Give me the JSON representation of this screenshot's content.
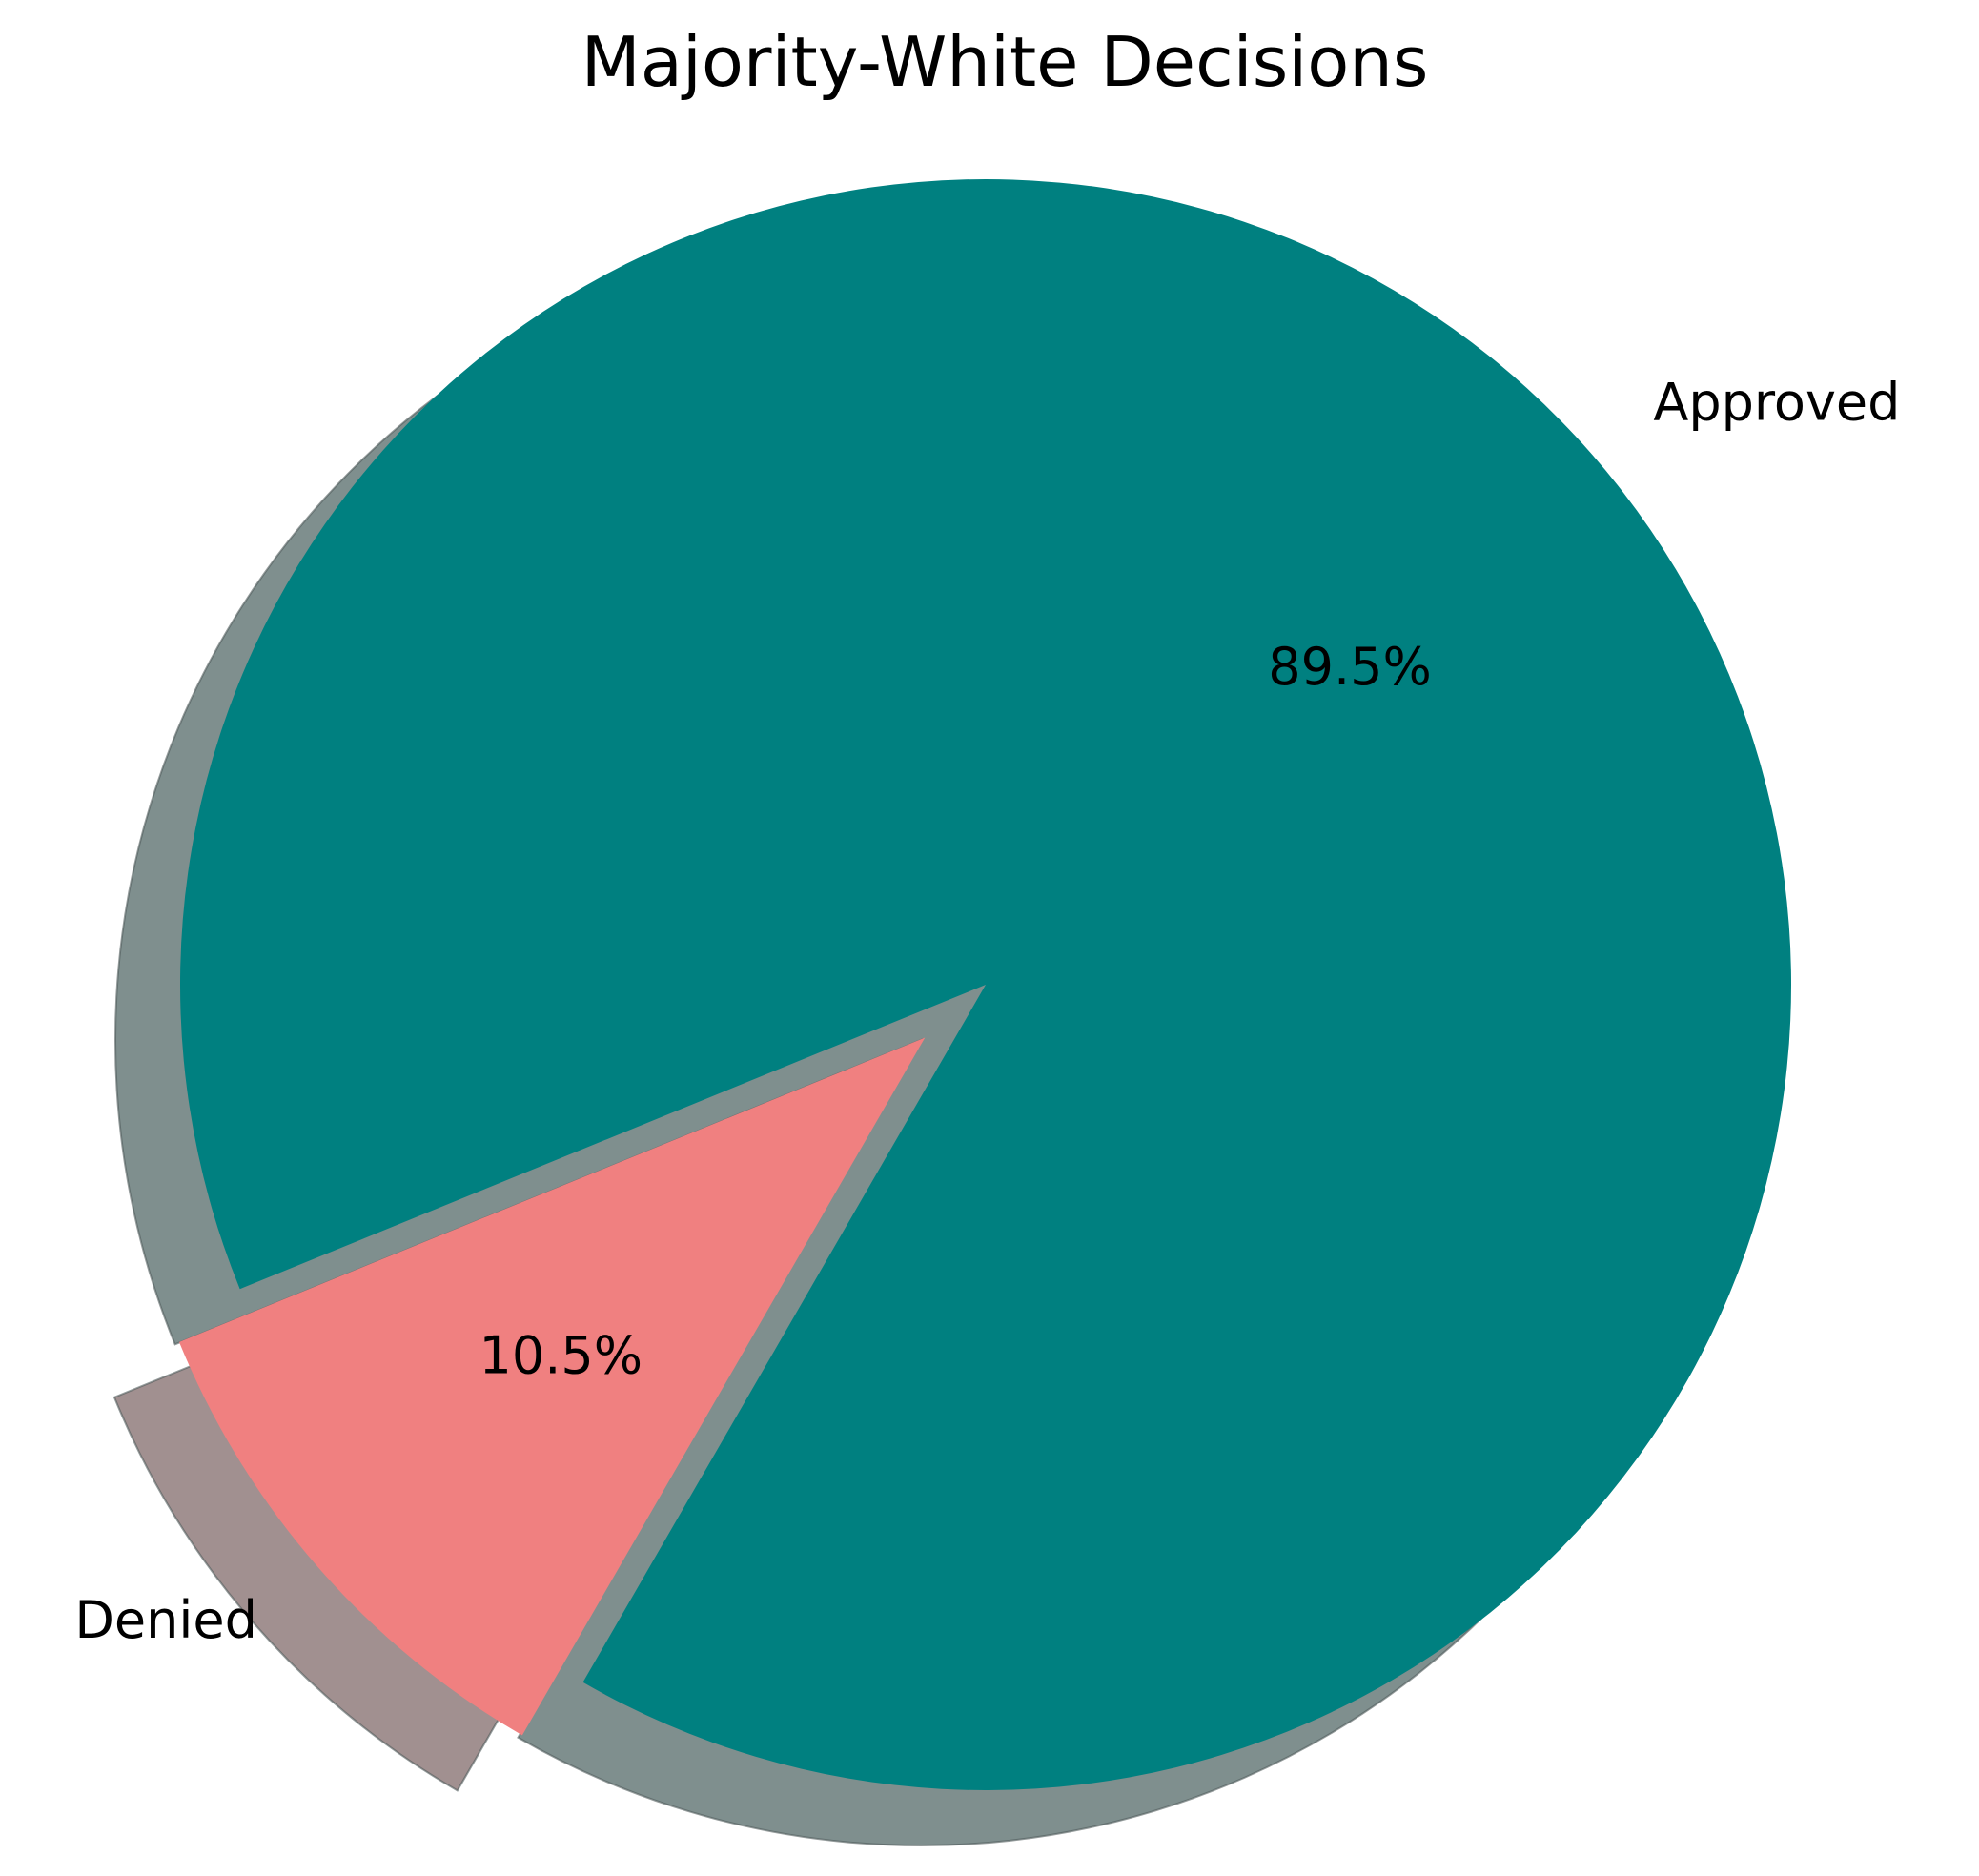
{
  "chart_data": {
    "type": "pie",
    "title": "Majority-White Decisions",
    "slices": [
      {
        "label": "Approved",
        "value": 89.5,
        "pct_text": "89.5%",
        "color": "#008080",
        "shadow_color": "#7f8f8e",
        "exploded": false
      },
      {
        "label": "Denied",
        "value": 10.5,
        "pct_text": "10.5%",
        "color": "#f08080",
        "shadow_color": "#a19090",
        "exploded": true
      }
    ],
    "start_angle_deg": 240,
    "direction": "counterclockwise",
    "shadow": true,
    "legend": "none"
  }
}
